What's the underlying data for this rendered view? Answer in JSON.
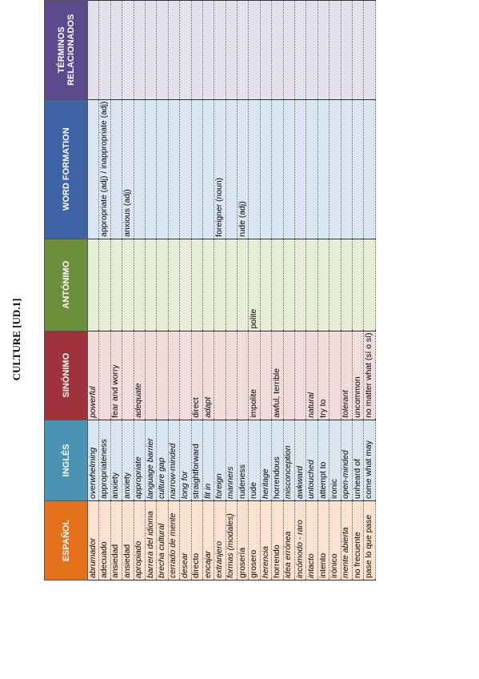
{
  "title": "CULTURE [UD.1]",
  "headers": {
    "espanol": "ESPAÑOL",
    "ingles": "INGLÉS",
    "sinonimo": "SINÓNIMO",
    "antonimo": "ANTÓNIMO",
    "word_formation": "WORD FORMATION",
    "terminos": "TÉRMINOS RELACIONADOS"
  },
  "header_colors": {
    "espanol": "#e3711b",
    "ingles": "#4a93b2",
    "sinonimo": "#a0323b",
    "antonimo": "#6b8f3a",
    "word_formation": "#3e63a5",
    "terminos": "#5b4a8c"
  },
  "rows": [
    {
      "es": "abrumador",
      "es_i": true,
      "en": "overwhelming",
      "en_i": true,
      "sy": "powerful",
      "sy_i": true,
      "an": "",
      "wf": "",
      "tr": ""
    },
    {
      "es": "adecuado",
      "es_i": false,
      "en": "appropriateness",
      "en_i": false,
      "sy": "",
      "sy_i": false,
      "an": "",
      "wf": "appropriate (adj) / inappropriate (adj)",
      "tr": ""
    },
    {
      "es": "ansiedad",
      "es_i": false,
      "en": "anxiety",
      "en_i": false,
      "sy": "fear and worry",
      "sy_i": false,
      "an": "",
      "wf": "",
      "tr": ""
    },
    {
      "es": "ansiedad",
      "es_i": false,
      "en": "anxiety",
      "en_i": false,
      "sy": "",
      "sy_i": false,
      "an": "",
      "wf": "anxious (adj)",
      "tr": ""
    },
    {
      "es": "apropiado",
      "es_i": true,
      "en": "appropriate",
      "en_i": true,
      "sy": "adequate",
      "sy_i": true,
      "an": "",
      "wf": "",
      "tr": ""
    },
    {
      "es": "barrera del idioma",
      "es_i": true,
      "en": "language barrier",
      "en_i": true,
      "sy": "",
      "sy_i": false,
      "an": "",
      "wf": "",
      "tr": ""
    },
    {
      "es": "brecha cultural",
      "es_i": true,
      "en": "culture gap",
      "en_i": true,
      "sy": "",
      "sy_i": false,
      "an": "",
      "wf": "",
      "tr": ""
    },
    {
      "es": "cerrado de mente",
      "es_i": true,
      "en": "narrow-minded",
      "en_i": true,
      "sy": "",
      "sy_i": false,
      "an": "",
      "wf": "",
      "tr": ""
    },
    {
      "es": "desear",
      "es_i": true,
      "en": "long for",
      "en_i": true,
      "sy": "",
      "sy_i": false,
      "an": "",
      "wf": "",
      "tr": ""
    },
    {
      "es": "directo",
      "es_i": false,
      "en": "straightforward",
      "en_i": false,
      "sy": "direct",
      "sy_i": false,
      "an": "",
      "wf": "",
      "tr": ""
    },
    {
      "es": "encajar",
      "es_i": true,
      "en": "fit in",
      "en_i": true,
      "sy": "adapt",
      "sy_i": true,
      "an": "",
      "wf": "",
      "tr": ""
    },
    {
      "es": "extranjero",
      "es_i": true,
      "en": "foreign",
      "en_i": true,
      "sy": "",
      "sy_i": false,
      "an": "",
      "wf": "foreigner (noun)",
      "tr": ""
    },
    {
      "es": "formas (modales)",
      "es_i": true,
      "en": "manners",
      "en_i": true,
      "sy": "",
      "sy_i": false,
      "an": "",
      "wf": "",
      "tr": ""
    },
    {
      "es": "grosería",
      "es_i": false,
      "en": "rudeness",
      "en_i": false,
      "sy": "",
      "sy_i": false,
      "an": "",
      "wf": "rude (adj)",
      "tr": ""
    },
    {
      "es": "grosero",
      "es_i": false,
      "en": "rude",
      "en_i": false,
      "sy": "impolite",
      "sy_i": false,
      "an": "polite",
      "wf": "",
      "tr": ""
    },
    {
      "es": "herencia",
      "es_i": true,
      "en": "heritage",
      "en_i": true,
      "sy": "",
      "sy_i": false,
      "an": "",
      "wf": "",
      "tr": ""
    },
    {
      "es": "horrendo",
      "es_i": false,
      "en": "horrendous",
      "en_i": false,
      "sy": "awful, terrible",
      "sy_i": false,
      "an": "",
      "wf": "",
      "tr": ""
    },
    {
      "es": "idea errónea",
      "es_i": true,
      "en": "misconception",
      "en_i": true,
      "sy": "",
      "sy_i": false,
      "an": "",
      "wf": "",
      "tr": ""
    },
    {
      "es": "incómodo - raro",
      "es_i": true,
      "en": "awkward",
      "en_i": true,
      "sy": "",
      "sy_i": false,
      "an": "",
      "wf": "",
      "tr": ""
    },
    {
      "es": "intacto",
      "es_i": true,
      "en": "untouched",
      "en_i": true,
      "sy": "natural",
      "sy_i": true,
      "an": "",
      "wf": "",
      "tr": ""
    },
    {
      "es": "intento",
      "es_i": false,
      "en": "attempt to",
      "en_i": false,
      "sy": "try to",
      "sy_i": false,
      "an": "",
      "wf": "",
      "tr": ""
    },
    {
      "es": "irónico",
      "es_i": false,
      "en": "ironic",
      "en_i": false,
      "sy": "",
      "sy_i": false,
      "an": "",
      "wf": "",
      "tr": ""
    },
    {
      "es": "mente abierta",
      "es_i": true,
      "en": "open-minded",
      "en_i": true,
      "sy": "tolerant",
      "sy_i": true,
      "an": "",
      "wf": "",
      "tr": ""
    },
    {
      "es": "no frecuente",
      "es_i": false,
      "en": "unheard of",
      "en_i": false,
      "sy": "uncommon",
      "sy_i": false,
      "an": "",
      "wf": "",
      "tr": ""
    },
    {
      "es": "pase lo que pase",
      "es_i": false,
      "en": "come what may",
      "en_i": false,
      "sy": "no matter what (sí o sí)",
      "sy_i": false,
      "an": "",
      "wf": "",
      "tr": ""
    }
  ]
}
